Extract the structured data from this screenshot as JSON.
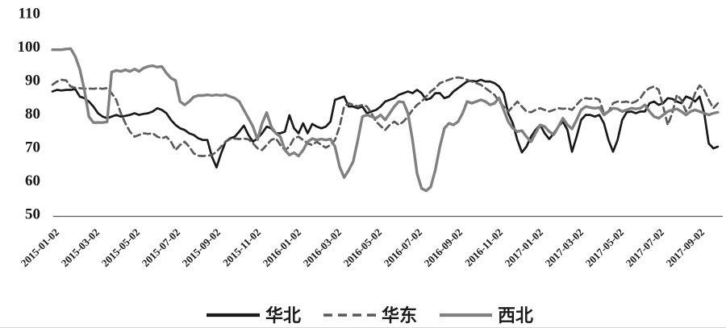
{
  "chart_data": {
    "type": "line",
    "title": "",
    "xlabel": "",
    "ylabel": "",
    "ylim": [
      50,
      110
    ],
    "y_ticks": [
      110,
      100,
      90,
      80,
      70,
      60,
      50
    ],
    "grid": false,
    "legend_position": "bottom",
    "x_tick_labels": [
      "2015-01-02",
      "2015-03-02",
      "2015-05-02",
      "2015-07-02",
      "2015-09-02",
      "2015-11-02",
      "2016-01-02",
      "2016-03-02",
      "2016-05-02",
      "2016-07-02",
      "2016-09-02",
      "2016-11-02",
      "2017-01-02",
      "2017-03-02",
      "2017-05-02",
      "2017-07-02",
      "2017-09-02"
    ],
    "x_unit": "weekly points from 2015-01-02 to 2017-10",
    "axis_color": "#595959",
    "series": [
      {
        "name": "华北",
        "id": "north-china",
        "style": "solid",
        "color": "#1a1a1a",
        "values": [
          86.5,
          87,
          86.8,
          87,
          87,
          87.2,
          85,
          84.5,
          83.5,
          82,
          80,
          79,
          78.5,
          79,
          79.5,
          79,
          79.2,
          79.5,
          80,
          79.5,
          79.8,
          80,
          80.5,
          81.5,
          81,
          80,
          78,
          76.5,
          75.5,
          75,
          74,
          73.5,
          72.5,
          72,
          72,
          67,
          63.8,
          68,
          71.5,
          72.5,
          73,
          74.5,
          76.3,
          73.5,
          71.5,
          72.5,
          74,
          76,
          75.5,
          74,
          74,
          74.5,
          79.4,
          75.5,
          74,
          77,
          74,
          76.8,
          76,
          75.5,
          76,
          77.5,
          84,
          84.5,
          85,
          82,
          82,
          81.5,
          82,
          80,
          80.5,
          81,
          82,
          83.5,
          84,
          84.5,
          85.5,
          86,
          86.5,
          86,
          87,
          86,
          84,
          84.5,
          86,
          86,
          84.5,
          85,
          86.5,
          87.5,
          88.5,
          89.5,
          89.7,
          89.5,
          90,
          89.5,
          89.5,
          89,
          88,
          86,
          80,
          77,
          72,
          68.3,
          70,
          73,
          75,
          76.5,
          74,
          72.3,
          74,
          76,
          77.5,
          75,
          68.5,
          73,
          78,
          79.5,
          79.5,
          79,
          79.5,
          77,
          72,
          68.5,
          72,
          78,
          80.3,
          80.5,
          80,
          80.5,
          80.5,
          83,
          83.5,
          82.5,
          83,
          84.5,
          84.3,
          83.5,
          83,
          85,
          84.5,
          83.5,
          85,
          80,
          71,
          69.5,
          70
        ]
      },
      {
        "name": "华东",
        "id": "east-china",
        "style": "dashed",
        "color": "#595959",
        "values": [
          88.5,
          89.5,
          90,
          89.8,
          88,
          87.6,
          87.5,
          87.3,
          87.4,
          87.3,
          87.5,
          87.3,
          87.5,
          86,
          84,
          80,
          77,
          74.5,
          73,
          73.5,
          74,
          73.8,
          74,
          73,
          72.5,
          73,
          71.5,
          69,
          70.5,
          71.5,
          70,
          68,
          67.3,
          67.2,
          67.3,
          67.5,
          68.5,
          70,
          71.5,
          72.3,
          72.4,
          72.3,
          72.4,
          72.2,
          71,
          69.5,
          69,
          70.5,
          72,
          72.5,
          70.5,
          69,
          70,
          72.5,
          73,
          72,
          71,
          70.5,
          71.5,
          70.5,
          69.7,
          70.5,
          72,
          76,
          82,
          83,
          82.5,
          82,
          82.5,
          82,
          80,
          77.5,
          76.2,
          75,
          76.5,
          77.5,
          76.5,
          77.5,
          79,
          81,
          82.5,
          83.5,
          85,
          86.5,
          87.5,
          89,
          89.5,
          90,
          90.5,
          90.7,
          90.5,
          90,
          89.5,
          89,
          88.5,
          87.5,
          86.5,
          85.5,
          83.5,
          82,
          80.5,
          82,
          83.5,
          82,
          80.5,
          80.3,
          81,
          81.5,
          81,
          80.5,
          81,
          81.5,
          81.3,
          81.5,
          81,
          82.5,
          84,
          84.5,
          84.3,
          84.5,
          84,
          80,
          80.5,
          83,
          83.5,
          83.3,
          83.5,
          83,
          83.5,
          84.5,
          86.5,
          87.5,
          88,
          87,
          82,
          76.5,
          80,
          85.5,
          84,
          80.5,
          82,
          86,
          88.3,
          87,
          84,
          81.5,
          83
        ]
      },
      {
        "name": "西北",
        "id": "northwest",
        "style": "solid",
        "color": "#808080",
        "values": [
          99,
          99,
          99,
          99.2,
          99.3,
          97,
          93.2,
          87,
          79,
          77.2,
          77.2,
          77.2,
          77.4,
          92.3,
          92.8,
          92.5,
          93,
          92.5,
          93.2,
          92.5,
          93.5,
          94,
          94.2,
          93.8,
          94,
          92,
          90.5,
          89.8,
          83.5,
          82.5,
          83.5,
          84.9,
          85.3,
          85.3,
          85.5,
          85.3,
          85.5,
          85.3,
          85.5,
          85,
          84.5,
          83.5,
          81,
          78.5,
          76,
          72.1,
          77,
          80.2,
          76,
          74,
          73,
          69,
          67.5,
          68.2,
          67.2,
          69,
          71.5,
          72.4,
          72,
          72.3,
          72,
          72.3,
          70,
          64,
          60.8,
          63,
          65.6,
          72,
          79,
          79.5,
          79,
          78.5,
          79.5,
          78,
          80,
          82,
          83.5,
          83.3,
          80,
          72,
          62,
          57.5,
          56.8,
          58,
          63,
          70,
          75.5,
          77,
          76.5,
          77.5,
          80,
          83.5,
          83,
          83.5,
          84,
          83.5,
          82.5,
          83,
          84.6,
          81,
          77.5,
          75.5,
          74.5,
          74.8,
          73,
          71.5,
          74,
          76.5,
          76,
          74.5,
          73.6,
          76,
          78.5,
          76.5,
          75.3,
          78,
          81,
          82,
          81.7,
          81.5,
          81.7,
          79.5,
          80.5,
          81.5,
          81.3,
          80.5,
          81,
          81.5,
          81.3,
          81.5,
          82.5,
          80.5,
          79,
          78.5,
          79.5,
          80.5,
          81,
          81.3,
          80.5,
          79.5,
          80.5,
          81,
          80.5,
          80,
          79.5,
          80,
          80.3
        ]
      }
    ],
    "legend": [
      "华北",
      "华东",
      "西北"
    ]
  }
}
